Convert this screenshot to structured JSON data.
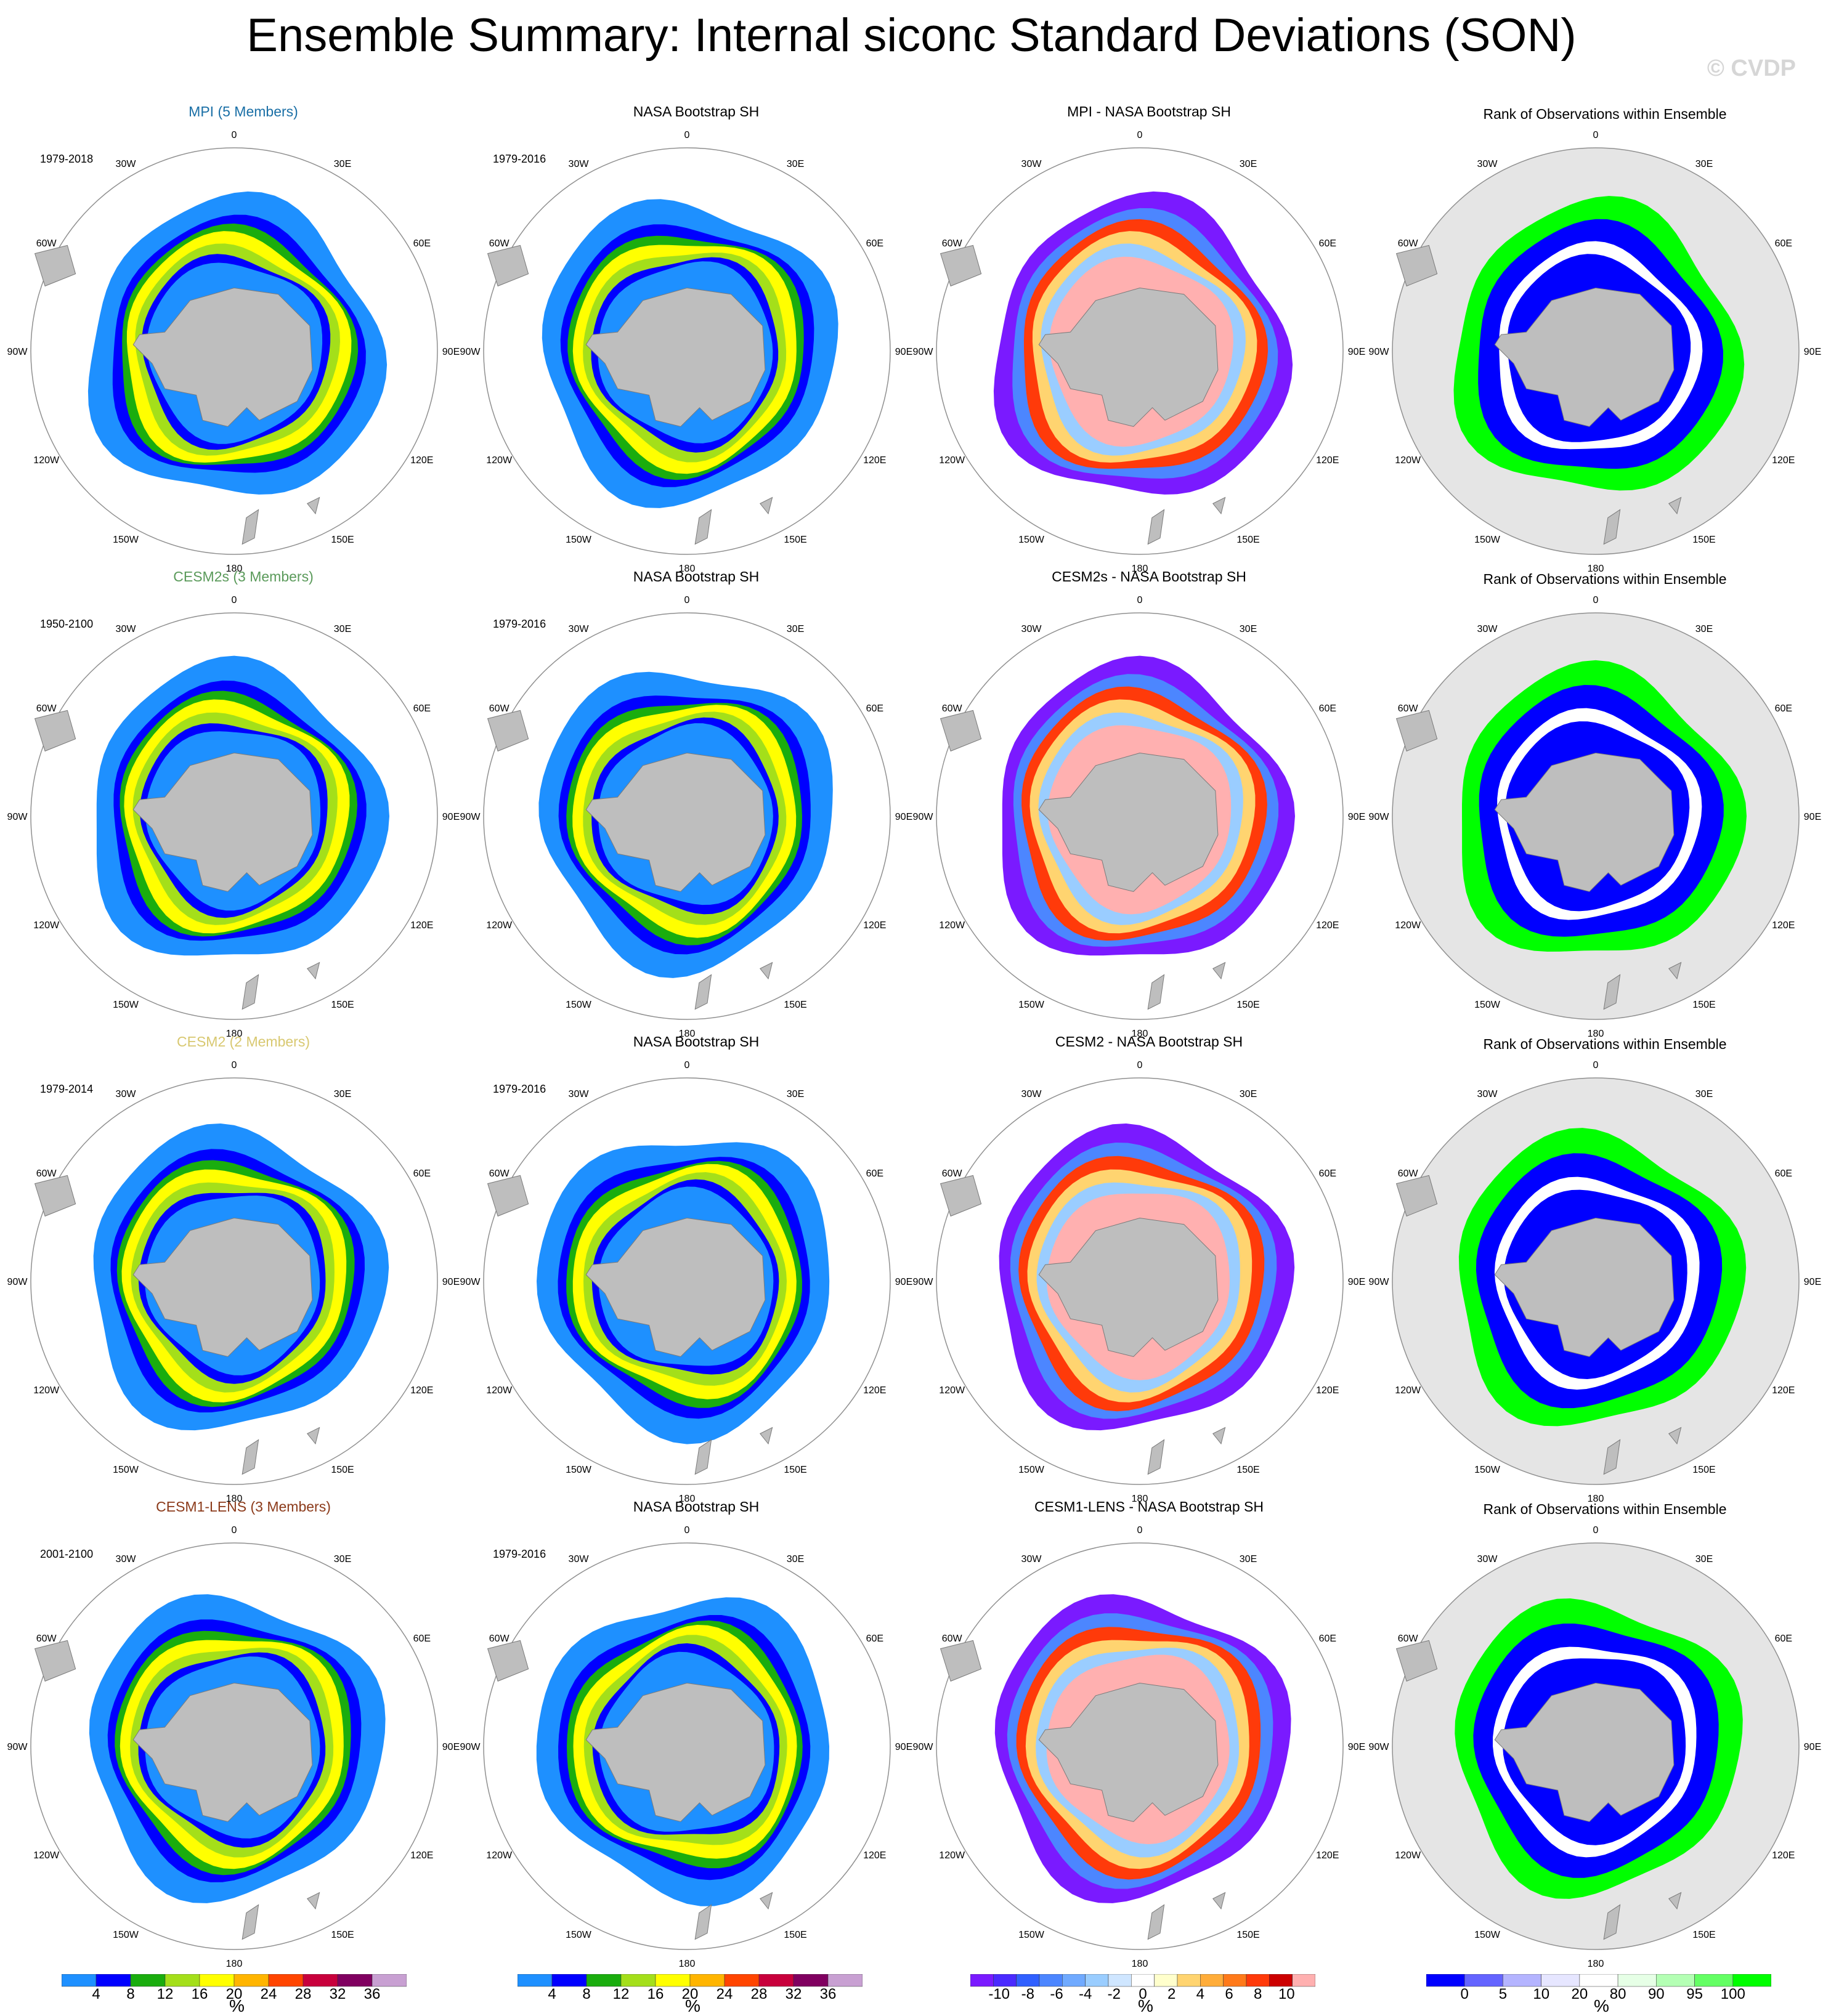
{
  "title": "Ensemble Summary: Internal siconc Standard Deviations (SON)",
  "watermark": "© CVDP",
  "lon_labels": [
    "0",
    "30E",
    "60E",
    "90E",
    "120E",
    "150E",
    "180",
    "150W",
    "120W",
    "90W",
    "60W",
    "30W"
  ],
  "colors": {
    "std": [
      "#1e90ff",
      "#0000ff",
      "#1aad0e",
      "#a4df1a",
      "#ffff00",
      "#ffb500",
      "#ff4500",
      "#c8003c",
      "#800060",
      "#c8a0d2"
    ],
    "diff": [
      "#7a1aff",
      "#4a2aff",
      "#3060ff",
      "#4c86ff",
      "#70aaff",
      "#9acdff",
      "#cfe6ff",
      "#ffffff",
      "#ffffcc",
      "#ffd470",
      "#ffad3a",
      "#ff7a1a",
      "#ff3a0a",
      "#cc0000",
      "#ffb0b0"
    ],
    "rank": [
      "#0000ff",
      "#6464ff",
      "#b4b4ff",
      "#e6e6ff",
      "#ffffff",
      "#e6ffe6",
      "#b4ffb4",
      "#64ff64",
      "#00ff00"
    ],
    "land": "#bebebe",
    "rank_bg": "#e5e5e5",
    "model_titles": [
      "#1a6fa6",
      "#5a9a5a",
      "#d8c870",
      "#8b3a1a"
    ]
  },
  "rows": [
    {
      "model_title": "MPI (5 Members)",
      "model_period": "1979-2018",
      "obs_title": "NASA Bootstrap SH",
      "obs_period": "1979-2016",
      "diff_title": "MPI - NASA Bootstrap SH",
      "rank_title": "Rank of Observations within Ensemble"
    },
    {
      "model_title": "CESM2s (3 Members)",
      "model_period": "1950-2100",
      "obs_title": "NASA Bootstrap SH",
      "obs_period": "1979-2016",
      "diff_title": "CESM2s - NASA Bootstrap SH",
      "rank_title": "Rank of Observations within Ensemble"
    },
    {
      "model_title": "CESM2 (2 Members)",
      "model_period": "1979-2014",
      "obs_title": "NASA Bootstrap SH",
      "obs_period": "1979-2016",
      "diff_title": "CESM2 - NASA Bootstrap SH",
      "rank_title": "Rank of Observations within Ensemble"
    },
    {
      "model_title": "CESM1-LENS (3 Members)",
      "model_period": "2001-2100",
      "obs_title": "NASA Bootstrap SH",
      "obs_period": "1979-2016",
      "diff_title": "CESM1-LENS - NASA Bootstrap SH",
      "rank_title": "Rank of Observations within Ensemble"
    }
  ],
  "colorbars": [
    {
      "labels": [
        "4",
        "8",
        "12",
        "16",
        "20",
        "24",
        "28",
        "32",
        "36"
      ],
      "unit": "%"
    },
    {
      "labels": [
        "4",
        "8",
        "12",
        "16",
        "20",
        "24",
        "28",
        "32",
        "36"
      ],
      "unit": "%"
    },
    {
      "labels": [
        "-10",
        "-8",
        "-6",
        "-4",
        "-2",
        "0",
        "2",
        "4",
        "6",
        "8",
        "10"
      ],
      "unit": "%"
    },
    {
      "labels": [
        "0",
        "5",
        "10",
        "20",
        "80",
        "90",
        "95",
        "100"
      ],
      "unit": "%"
    }
  ],
  "chart_data": {
    "type": "heatmap",
    "projection": "south polar stereographic",
    "variable": "siconc",
    "season": "SON",
    "panels_per_row": [
      "model std dev",
      "observed std dev",
      "model minus observed",
      "rank of observations"
    ],
    "std_levels": [
      4,
      8,
      12,
      16,
      20,
      24,
      28,
      32,
      36
    ],
    "diff_levels": [
      -10,
      -8,
      -6,
      -4,
      -2,
      0,
      2,
      4,
      6,
      8,
      10
    ],
    "rank_levels": [
      0,
      5,
      10,
      20,
      80,
      90,
      95,
      100
    ],
    "unit": "%"
  }
}
